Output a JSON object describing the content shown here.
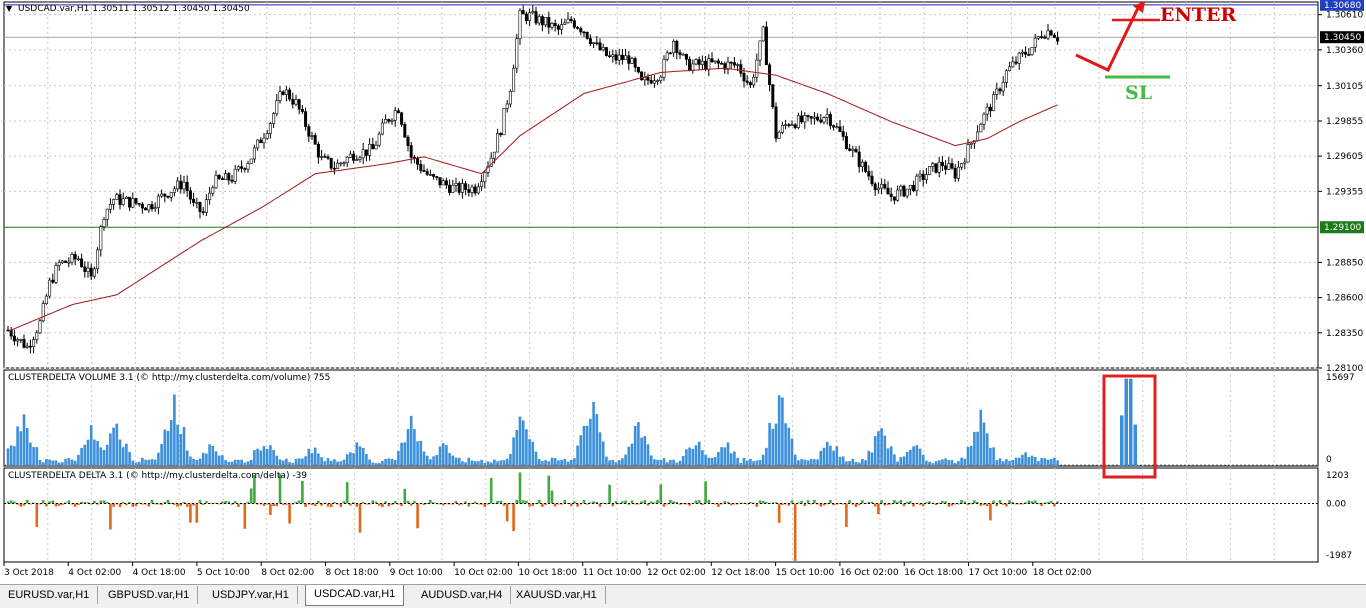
{
  "window": {
    "symbol_info": "USDCAD.var,H1  1.30511 1.30512 1.30450 1.30450"
  },
  "panels": {
    "volume_label": "CLUSTERDELTA VOLUME 3.1 (© http://my.clusterdelta.com/volume) 755",
    "delta_label": "CLUSTERDELTA DELTA 3.1 (© http://my.clusterdelta.com/delta) -39"
  },
  "annotations": {
    "enter_label": "ENTER",
    "sl_label": "SL",
    "enter_color": "#cc0000",
    "sl_color": "#44bb44",
    "box_color": "#e02020"
  },
  "tabs": [
    {
      "label": "EURUSD.var,H1",
      "active": false
    },
    {
      "label": "GBPUSD.var,H1",
      "active": false
    },
    {
      "label": "USDJPY.var,H1",
      "active": false
    },
    {
      "label": "USDCAD.var,H1",
      "active": true
    },
    {
      "label": "AUDUSD.var,H4",
      "active": false
    },
    {
      "label": "XAUUSD.var,H1",
      "active": false
    }
  ],
  "chart_data": {
    "type": "candlestick",
    "price_axis_ticks": [
      "1.30610",
      "1.30360",
      "1.30105",
      "1.29855",
      "1.29605",
      "1.29355",
      "1.28850",
      "1.28600",
      "1.28350",
      "1.28100"
    ],
    "price_range": [
      1.281,
      1.307
    ],
    "current_price_label": "1.30450",
    "current_price": 1.3045,
    "blue_line_label": "1.30680",
    "blue_line_price": 1.3068,
    "green_line_label": "1.29100",
    "green_line_price": 1.291,
    "volume_axis_ticks": [
      "15697",
      "0"
    ],
    "volume_range": [
      0,
      15697
    ],
    "delta_axis_ticks": [
      "1203",
      "0.00",
      "-1987"
    ],
    "delta_range": [
      -1987,
      1203
    ],
    "time_labels": [
      "3 Oct 2018",
      "4 Oct 02:00",
      "4 Oct 18:00",
      "5 Oct 10:00",
      "8 Oct 02:00",
      "8 Oct 18:00",
      "9 Oct 10:00",
      "10 Oct 02:00",
      "10 Oct 18:00",
      "11 Oct 10:00",
      "12 Oct 02:00",
      "12 Oct 18:00",
      "15 Oct 10:00",
      "16 Oct 02:00",
      "16 Oct 18:00",
      "17 Oct 10:00",
      "18 Oct 02:00"
    ],
    "price_path": [
      [
        0,
        1.2837
      ],
      [
        6,
        1.2825
      ],
      [
        10,
        1.2842
      ],
      [
        13,
        1.287
      ],
      [
        16,
        1.2884
      ],
      [
        22,
        1.2888
      ],
      [
        26,
        1.2873
      ],
      [
        30,
        1.292
      ],
      [
        33,
        1.293
      ],
      [
        38,
        1.2928
      ],
      [
        44,
        1.2925
      ],
      [
        50,
        1.2935
      ],
      [
        55,
        1.2942
      ],
      [
        58,
        1.2925
      ],
      [
        61,
        1.292
      ],
      [
        64,
        1.2942
      ],
      [
        70,
        1.2945
      ],
      [
        76,
        1.296
      ],
      [
        82,
        1.2985
      ],
      [
        86,
        1.3008
      ],
      [
        90,
        1.2998
      ],
      [
        94,
        1.2978
      ],
      [
        98,
        1.2958
      ],
      [
        102,
        1.2953
      ],
      [
        108,
        1.2962
      ],
      [
        114,
        1.2965
      ],
      [
        118,
        1.2985
      ],
      [
        122,
        1.2995
      ],
      [
        126,
        1.296
      ],
      [
        132,
        1.2945
      ],
      [
        140,
        1.2937
      ],
      [
        146,
        1.2938
      ],
      [
        151,
        1.296
      ],
      [
        154,
        1.298
      ],
      [
        157,
        1.301
      ],
      [
        160,
        1.306
      ],
      [
        163,
        1.306
      ],
      [
        168,
        1.3055
      ],
      [
        172,
        1.305
      ],
      [
        176,
        1.3057
      ],
      [
        180,
        1.305
      ],
      [
        184,
        1.3038
      ],
      [
        188,
        1.303
      ],
      [
        194,
        1.303
      ],
      [
        198,
        1.3012
      ],
      [
        204,
        1.302
      ],
      [
        208,
        1.3043
      ],
      [
        212,
        1.3025
      ],
      [
        220,
        1.3026
      ],
      [
        228,
        1.3025
      ],
      [
        232,
        1.301
      ],
      [
        236,
        1.3048
      ],
      [
        240,
        1.2975
      ],
      [
        244,
        1.2985
      ],
      [
        250,
        1.2985
      ],
      [
        256,
        1.299
      ],
      [
        262,
        1.297
      ],
      [
        268,
        1.295
      ],
      [
        272,
        1.2938
      ],
      [
        276,
        1.2932
      ],
      [
        282,
        1.2938
      ],
      [
        288,
        1.295
      ],
      [
        292,
        1.2955
      ],
      [
        296,
        1.2948
      ],
      [
        300,
        1.2965
      ],
      [
        304,
        1.2985
      ],
      [
        308,
        1.3
      ],
      [
        312,
        1.302
      ],
      [
        316,
        1.303
      ],
      [
        320,
        1.3038
      ],
      [
        323,
        1.3048
      ],
      [
        326,
        1.305
      ],
      [
        328,
        1.3045
      ]
    ],
    "ma_path": [
      [
        0,
        1.2836
      ],
      [
        20,
        1.2855
      ],
      [
        34,
        1.2862
      ],
      [
        60,
        1.29
      ],
      [
        80,
        1.2925
      ],
      [
        96,
        1.2948
      ],
      [
        118,
        1.2955
      ],
      [
        130,
        1.296
      ],
      [
        148,
        1.2948
      ],
      [
        160,
        1.2975
      ],
      [
        180,
        1.3005
      ],
      [
        204,
        1.302
      ],
      [
        224,
        1.3023
      ],
      [
        240,
        1.3018
      ],
      [
        256,
        1.3005
      ],
      [
        276,
        1.2985
      ],
      [
        296,
        1.2968
      ],
      [
        306,
        1.2973
      ],
      [
        316,
        1.2985
      ],
      [
        328,
        1.2997
      ]
    ],
    "volume_clusters": [
      [
        0,
        0.3
      ],
      [
        5,
        0.65
      ],
      [
        26,
        0.45
      ],
      [
        34,
        0.55
      ],
      [
        52,
        0.9
      ],
      [
        64,
        0.3
      ],
      [
        80,
        0.35
      ],
      [
        95,
        0.25
      ],
      [
        109,
        0.3
      ],
      [
        126,
        0.7
      ],
      [
        136,
        0.3
      ],
      [
        161,
        0.65
      ],
      [
        182,
        0.85
      ],
      [
        197,
        0.6
      ],
      [
        215,
        0.4
      ],
      [
        224,
        0.35
      ],
      [
        241,
        0.95
      ],
      [
        257,
        0.35
      ],
      [
        273,
        0.5
      ],
      [
        283,
        0.3
      ],
      [
        304,
        0.65
      ],
      [
        318,
        0.2
      ]
    ],
    "boxed_volume_values": [
      0.55,
      0.95,
      0.95,
      0.45
    ]
  }
}
